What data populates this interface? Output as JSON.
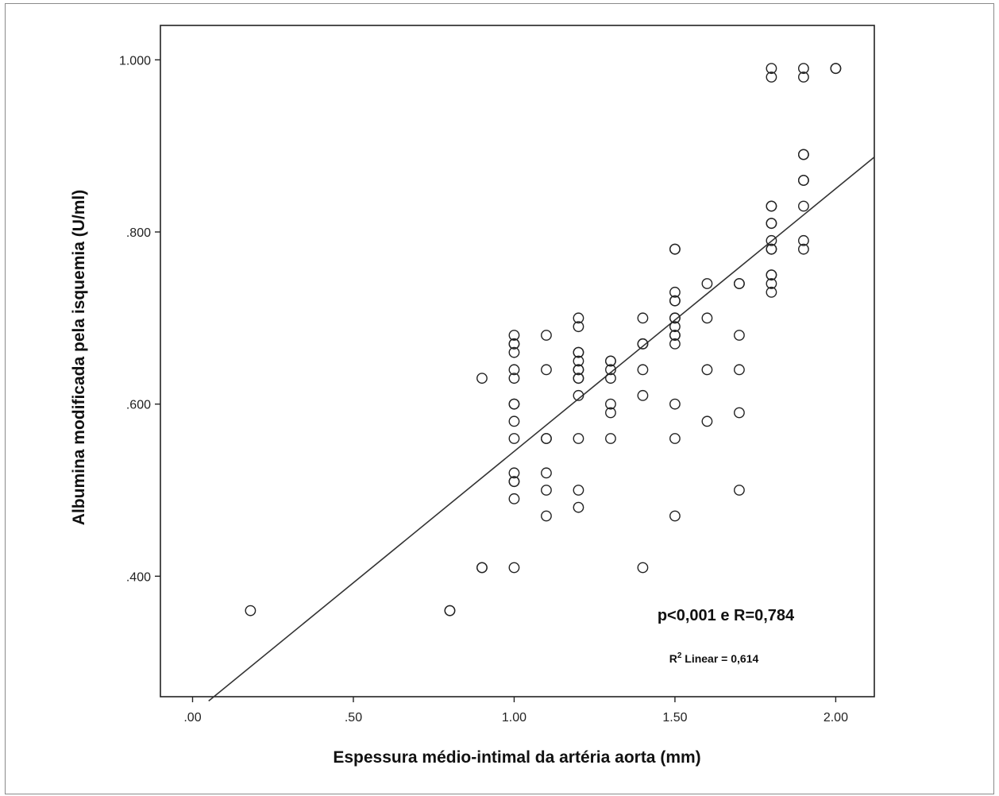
{
  "chart_data": {
    "type": "scatter",
    "title": "",
    "xlabel": "Espessura médio-intimal da artéria aorta (mm)",
    "ylabel": "Albumina modificada pela isquemia (U/ml)",
    "xlim": [
      -0.1,
      2.12
    ],
    "ylim": [
      0.26,
      1.04
    ],
    "x_ticks": [
      0.0,
      0.5,
      1.0,
      1.5,
      2.0
    ],
    "x_tick_labels": [
      ".00",
      ".50",
      "1.00",
      "1.50",
      "2.00"
    ],
    "y_ticks": [
      0.4,
      0.6,
      0.8,
      1.0
    ],
    "y_tick_labels": [
      ".400",
      ".600",
      ".800",
      "1.000"
    ],
    "grid": false,
    "marker": "open-circle",
    "marker_color": "#222222",
    "line_color": "#333333",
    "annotations": {
      "stats": "p<0,001 e R=0,784",
      "r2_prefix": "R",
      "r2_sup": "2",
      "r2_suffix": " Linear = 0,614"
    },
    "fit_line": {
      "x": [
        0.05,
        2.12
      ],
      "y": [
        0.255,
        0.887
      ]
    },
    "points": [
      {
        "x": 0.18,
        "y": 0.36
      },
      {
        "x": 0.8,
        "y": 0.36
      },
      {
        "x": 0.8,
        "y": 0.36
      },
      {
        "x": 0.9,
        "y": 0.63
      },
      {
        "x": 0.9,
        "y": 0.41
      },
      {
        "x": 0.9,
        "y": 0.41
      },
      {
        "x": 1.0,
        "y": 0.68
      },
      {
        "x": 1.0,
        "y": 0.67
      },
      {
        "x": 1.0,
        "y": 0.67
      },
      {
        "x": 1.0,
        "y": 0.66
      },
      {
        "x": 1.0,
        "y": 0.64
      },
      {
        "x": 1.0,
        "y": 0.63
      },
      {
        "x": 1.0,
        "y": 0.6
      },
      {
        "x": 1.0,
        "y": 0.6
      },
      {
        "x": 1.0,
        "y": 0.58
      },
      {
        "x": 1.0,
        "y": 0.56
      },
      {
        "x": 1.0,
        "y": 0.52
      },
      {
        "x": 1.0,
        "y": 0.51
      },
      {
        "x": 1.0,
        "y": 0.51
      },
      {
        "x": 1.0,
        "y": 0.49
      },
      {
        "x": 1.0,
        "y": 0.41
      },
      {
        "x": 1.1,
        "y": 0.68
      },
      {
        "x": 1.1,
        "y": 0.64
      },
      {
        "x": 1.1,
        "y": 0.56
      },
      {
        "x": 1.1,
        "y": 0.56
      },
      {
        "x": 1.1,
        "y": 0.52
      },
      {
        "x": 1.1,
        "y": 0.5
      },
      {
        "x": 1.1,
        "y": 0.47
      },
      {
        "x": 1.2,
        "y": 0.7
      },
      {
        "x": 1.2,
        "y": 0.69
      },
      {
        "x": 1.2,
        "y": 0.66
      },
      {
        "x": 1.2,
        "y": 0.66
      },
      {
        "x": 1.2,
        "y": 0.65
      },
      {
        "x": 1.2,
        "y": 0.64
      },
      {
        "x": 1.2,
        "y": 0.64
      },
      {
        "x": 1.2,
        "y": 0.63
      },
      {
        "x": 1.2,
        "y": 0.63
      },
      {
        "x": 1.2,
        "y": 0.61
      },
      {
        "x": 1.2,
        "y": 0.56
      },
      {
        "x": 1.2,
        "y": 0.5
      },
      {
        "x": 1.2,
        "y": 0.48
      },
      {
        "x": 1.3,
        "y": 0.65
      },
      {
        "x": 1.3,
        "y": 0.65
      },
      {
        "x": 1.3,
        "y": 0.64
      },
      {
        "x": 1.3,
        "y": 0.63
      },
      {
        "x": 1.3,
        "y": 0.6
      },
      {
        "x": 1.3,
        "y": 0.59
      },
      {
        "x": 1.3,
        "y": 0.56
      },
      {
        "x": 1.4,
        "y": 0.7
      },
      {
        "x": 1.4,
        "y": 0.67
      },
      {
        "x": 1.4,
        "y": 0.67
      },
      {
        "x": 1.4,
        "y": 0.64
      },
      {
        "x": 1.4,
        "y": 0.61
      },
      {
        "x": 1.4,
        "y": 0.41
      },
      {
        "x": 1.5,
        "y": 0.78
      },
      {
        "x": 1.5,
        "y": 0.78
      },
      {
        "x": 1.5,
        "y": 0.73
      },
      {
        "x": 1.5,
        "y": 0.72
      },
      {
        "x": 1.5,
        "y": 0.72
      },
      {
        "x": 1.5,
        "y": 0.7
      },
      {
        "x": 1.5,
        "y": 0.7
      },
      {
        "x": 1.5,
        "y": 0.69
      },
      {
        "x": 1.5,
        "y": 0.68
      },
      {
        "x": 1.5,
        "y": 0.68
      },
      {
        "x": 1.5,
        "y": 0.67
      },
      {
        "x": 1.5,
        "y": 0.6
      },
      {
        "x": 1.5,
        "y": 0.56
      },
      {
        "x": 1.5,
        "y": 0.47
      },
      {
        "x": 1.6,
        "y": 0.74
      },
      {
        "x": 1.6,
        "y": 0.7
      },
      {
        "x": 1.6,
        "y": 0.64
      },
      {
        "x": 1.6,
        "y": 0.58
      },
      {
        "x": 1.7,
        "y": 0.74
      },
      {
        "x": 1.7,
        "y": 0.74
      },
      {
        "x": 1.7,
        "y": 0.68
      },
      {
        "x": 1.7,
        "y": 0.64
      },
      {
        "x": 1.7,
        "y": 0.59
      },
      {
        "x": 1.7,
        "y": 0.5
      },
      {
        "x": 1.8,
        "y": 0.99
      },
      {
        "x": 1.8,
        "y": 0.98
      },
      {
        "x": 1.8,
        "y": 0.83
      },
      {
        "x": 1.8,
        "y": 0.83
      },
      {
        "x": 1.8,
        "y": 0.81
      },
      {
        "x": 1.8,
        "y": 0.81
      },
      {
        "x": 1.8,
        "y": 0.79
      },
      {
        "x": 1.8,
        "y": 0.78
      },
      {
        "x": 1.8,
        "y": 0.78
      },
      {
        "x": 1.8,
        "y": 0.75
      },
      {
        "x": 1.8,
        "y": 0.75
      },
      {
        "x": 1.8,
        "y": 0.74
      },
      {
        "x": 1.8,
        "y": 0.73
      },
      {
        "x": 1.9,
        "y": 0.99
      },
      {
        "x": 1.9,
        "y": 0.98
      },
      {
        "x": 1.9,
        "y": 0.89
      },
      {
        "x": 1.9,
        "y": 0.89
      },
      {
        "x": 1.9,
        "y": 0.86
      },
      {
        "x": 1.9,
        "y": 0.86
      },
      {
        "x": 1.9,
        "y": 0.83
      },
      {
        "x": 1.9,
        "y": 0.79
      },
      {
        "x": 1.9,
        "y": 0.78
      },
      {
        "x": 2.0,
        "y": 0.99
      },
      {
        "x": 2.0,
        "y": 0.99
      }
    ]
  }
}
